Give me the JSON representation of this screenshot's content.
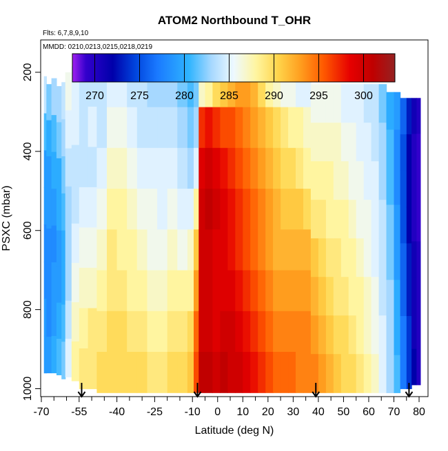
{
  "chart_data": {
    "type": "heatmap",
    "title": "ATOM2 Northbound T_OHR",
    "flights_note": "Flts: 6,7,8,9,10",
    "dates_note": "MMDD: 0210,0213,0215,0218,0219",
    "xlabel": "Latitude (deg N)",
    "ylabel": "PSXC (mbar)",
    "xlim": [
      -70,
      83
    ],
    "ylim": [
      1020,
      120
    ],
    "y_reversed": true,
    "x_ticks": [
      -70,
      -55,
      -40,
      -25,
      -10,
      0,
      10,
      20,
      30,
      40,
      50,
      60,
      70,
      80
    ],
    "x_tick_labels": [
      "-70",
      "-55",
      "-40",
      "-25",
      "-10",
      "0",
      "10",
      "20",
      "30",
      "40",
      "50",
      "60",
      "70",
      "80"
    ],
    "x_minor_ticks": [
      -65,
      -60,
      -50,
      -45,
      -35,
      -30,
      -20,
      -15,
      -5,
      5,
      15,
      25,
      35,
      45,
      55,
      65,
      75
    ],
    "y_ticks": [
      200,
      400,
      600,
      800,
      1000
    ],
    "y_tick_labels": [
      "200",
      "400",
      "600",
      "800",
      "1000"
    ],
    "colorbar": {
      "min": 267.5,
      "max": 303.5,
      "ticks": [
        270,
        275,
        280,
        285,
        290,
        295,
        300
      ],
      "tick_labels": [
        "270",
        "275",
        "280",
        "285",
        "290",
        "295",
        "300"
      ],
      "stops": [
        {
          "v": 267.5,
          "c": "#a020f0"
        },
        {
          "v": 269.0,
          "c": "#3300cc"
        },
        {
          "v": 272.0,
          "c": "#0000aa"
        },
        {
          "v": 274.5,
          "c": "#0044dd"
        },
        {
          "v": 277.0,
          "c": "#1a7aff"
        },
        {
          "v": 280.5,
          "c": "#2fb4ff"
        },
        {
          "v": 283.0,
          "c": "#a6d8ff"
        },
        {
          "v": 285.5,
          "c": "#eef9ff"
        },
        {
          "v": 288.0,
          "c": "#fff5a0"
        },
        {
          "v": 290.5,
          "c": "#ffd44a"
        },
        {
          "v": 293.0,
          "c": "#ff9d1e"
        },
        {
          "v": 295.5,
          "c": "#ff5a00"
        },
        {
          "v": 298.5,
          "c": "#e60000"
        },
        {
          "v": 301.0,
          "c": "#c00000"
        },
        {
          "v": 303.5,
          "c": "#952222"
        }
      ]
    },
    "profile_arrows_lat": [
      -54,
      -8,
      39,
      76
    ],
    "columns": [
      {
        "x": [
          -69.0,
          -68.0
        ],
        "p": [
          210,
          960
        ],
        "t": [
          284,
          281,
          279,
          279,
          278,
          278,
          279,
          279
        ]
      },
      {
        "x": [
          -68.0,
          -66.0
        ],
        "p": [
          230,
          960
        ],
        "t": [
          282,
          280,
          279,
          279,
          278,
          278,
          278,
          279
        ]
      },
      {
        "x": [
          -66.0,
          -64.0
        ],
        "p": [
          215,
          960
        ],
        "t": [
          283,
          281,
          280,
          279,
          278,
          279,
          279,
          280
        ]
      },
      {
        "x": [
          -64.0,
          -62.0
        ],
        "p": [
          235,
          965
        ],
        "t": [
          283,
          282,
          280,
          280,
          279,
          279,
          280,
          281
        ]
      },
      {
        "x": [
          -62.0,
          -60.5
        ],
        "p": [
          225,
          975
        ],
        "t": [
          284,
          283,
          282,
          281,
          280,
          280,
          281,
          282
        ]
      },
      {
        "x": [
          -60.5,
          -58.0
        ],
        "p": [
          200,
          970
        ],
        "t": [
          286,
          285,
          284,
          283,
          283,
          283,
          284,
          285
        ]
      },
      {
        "x": [
          -58.0,
          -55.0
        ],
        "p": [
          185,
          980
        ],
        "t": [
          285,
          285,
          284,
          284,
          285,
          286,
          287,
          288
        ]
      },
      {
        "x": [
          -55.0,
          -51.5
        ],
        "p": [
          185,
          1000
        ],
        "t": [
          284,
          284,
          284,
          285,
          286,
          287,
          288,
          289
        ]
      },
      {
        "x": [
          -51.5,
          -48.0
        ],
        "p": [
          185,
          1000
        ],
        "t": [
          284,
          285,
          284,
          285,
          286,
          287,
          289,
          289
        ]
      },
      {
        "x": [
          -48.0,
          -44.0
        ],
        "p": [
          185,
          1010
        ],
        "t": [
          284,
          284,
          285,
          286,
          287,
          288,
          289,
          290
        ]
      },
      {
        "x": [
          -44.0,
          -40.0
        ],
        "p": [
          185,
          1010
        ],
        "t": [
          285,
          286,
          287,
          288,
          289,
          289,
          290,
          290
        ]
      },
      {
        "x": [
          -40.0,
          -36.0
        ],
        "p": [
          185,
          1010
        ],
        "t": [
          285,
          286,
          287,
          288,
          288,
          289,
          290,
          290
        ]
      },
      {
        "x": [
          -36.0,
          -32.0
        ],
        "p": [
          185,
          1010
        ],
        "t": [
          284,
          285,
          286,
          287,
          288,
          288,
          289,
          290
        ]
      },
      {
        "x": [
          -32.0,
          -28.0
        ],
        "p": [
          185,
          1010
        ],
        "t": [
          284,
          284,
          285,
          286,
          287,
          288,
          289,
          290
        ]
      },
      {
        "x": [
          -28.0,
          -24.0
        ],
        "p": [
          185,
          1010
        ],
        "t": [
          283,
          284,
          285,
          286,
          286,
          287,
          288,
          289
        ]
      },
      {
        "x": [
          -24.0,
          -20.0
        ],
        "p": [
          185,
          1010
        ],
        "t": [
          283,
          284,
          285,
          285,
          286,
          287,
          288,
          289
        ]
      },
      {
        "x": [
          -20.0,
          -16.0
        ],
        "p": [
          185,
          1010
        ],
        "t": [
          283,
          284,
          285,
          286,
          287,
          288,
          289,
          290
        ]
      },
      {
        "x": [
          -16.0,
          -12.0
        ],
        "p": [
          185,
          1010
        ],
        "t": [
          282,
          283,
          284,
          285,
          286,
          288,
          289,
          290
        ]
      },
      {
        "x": [
          -12.0,
          -9.5
        ],
        "p": [
          185,
          1010
        ],
        "t": [
          281,
          282,
          283,
          285,
          287,
          288,
          290,
          291
        ]
      },
      {
        "x": [
          -9.5,
          -7.5
        ],
        "p": [
          185,
          1010
        ],
        "t": [
          282,
          283,
          285,
          288,
          291,
          293,
          295,
          296
        ]
      },
      {
        "x": [
          -7.5,
          -5.0
        ],
        "p": [
          185,
          1010
        ],
        "t": [
          287,
          297,
          299,
          300,
          300,
          300,
          300,
          301
        ]
      },
      {
        "x": [
          -5.0,
          -2.0
        ],
        "p": [
          185,
          1010
        ],
        "t": [
          288,
          298,
          300,
          301,
          300,
          300,
          300,
          301
        ]
      },
      {
        "x": [
          -2.0,
          1.0
        ],
        "p": [
          185,
          1010
        ],
        "t": [
          290,
          297,
          299,
          300,
          299,
          299,
          299,
          300
        ]
      },
      {
        "x": [
          1.0,
          4.0
        ],
        "p": [
          185,
          1010
        ],
        "t": [
          291,
          296,
          298,
          299,
          299,
          299,
          300,
          301
        ]
      },
      {
        "x": [
          4.0,
          7.0
        ],
        "p": [
          185,
          1010
        ],
        "t": [
          292,
          296,
          297,
          298,
          298,
          299,
          300,
          300
        ]
      },
      {
        "x": [
          7.0,
          10.0
        ],
        "p": [
          185,
          1010
        ],
        "t": [
          293,
          295,
          296,
          297,
          297,
          298,
          299,
          300
        ]
      },
      {
        "x": [
          10.0,
          13.0
        ],
        "p": [
          185,
          1010
        ],
        "t": [
          293,
          294,
          295,
          296,
          296,
          297,
          298,
          299
        ]
      },
      {
        "x": [
          13.0,
          16.0
        ],
        "p": [
          185,
          1010
        ],
        "t": [
          292,
          293,
          294,
          295,
          295,
          296,
          297,
          298
        ]
      },
      {
        "x": [
          16.0,
          19.0
        ],
        "p": [
          185,
          1010
        ],
        "t": [
          290,
          292,
          293,
          294,
          294,
          295,
          296,
          297
        ]
      },
      {
        "x": [
          19.0,
          22.0
        ],
        "p": [
          185,
          1010
        ],
        "t": [
          288,
          291,
          292,
          293,
          293,
          294,
          295,
          296
        ]
      },
      {
        "x": [
          22.0,
          25.0
        ],
        "p": [
          185,
          1010
        ],
        "t": [
          287,
          290,
          291,
          292,
          292,
          293,
          294,
          295
        ]
      },
      {
        "x": [
          25.0,
          28.0
        ],
        "p": [
          185,
          1010
        ],
        "t": [
          286,
          289,
          290,
          291,
          292,
          293,
          294,
          295
        ]
      },
      {
        "x": [
          28.0,
          31.0
        ],
        "p": [
          185,
          1010
        ],
        "t": [
          286,
          288,
          290,
          291,
          292,
          293,
          294,
          295
        ]
      },
      {
        "x": [
          31.0,
          34.0
        ],
        "p": [
          185,
          1010
        ],
        "t": [
          285,
          288,
          289,
          291,
          292,
          293,
          294,
          294
        ]
      },
      {
        "x": [
          34.0,
          37.0
        ],
        "p": [
          185,
          1010
        ],
        "t": [
          285,
          287,
          288,
          290,
          292,
          293,
          294,
          294
        ]
      },
      {
        "x": [
          37.0,
          40.0
        ],
        "p": [
          230,
          1010
        ],
        "t": [
          286,
          287,
          288,
          289,
          291,
          292,
          293,
          294
        ]
      },
      {
        "x": [
          40.0,
          43.0
        ],
        "p": [
          230,
          1010
        ],
        "t": [
          286,
          287,
          288,
          289,
          290,
          291,
          292,
          293
        ]
      },
      {
        "x": [
          43.0,
          46.0
        ],
        "p": [
          230,
          1010
        ],
        "t": [
          286,
          287,
          288,
          288,
          289,
          290,
          291,
          292
        ]
      },
      {
        "x": [
          46.0,
          49.0
        ],
        "p": [
          230,
          1010
        ],
        "t": [
          286,
          287,
          287,
          288,
          289,
          289,
          290,
          291
        ]
      },
      {
        "x": [
          49.0,
          52.0
        ],
        "p": [
          230,
          1010
        ],
        "t": [
          285,
          286,
          287,
          288,
          288,
          289,
          290,
          290
        ]
      },
      {
        "x": [
          52.0,
          55.0
        ],
        "p": [
          230,
          1010
        ],
        "t": [
          285,
          286,
          286,
          287,
          288,
          288,
          289,
          290
        ]
      },
      {
        "x": [
          55.0,
          58.0
        ],
        "p": [
          230,
          1010
        ],
        "t": [
          285,
          285,
          286,
          286,
          287,
          288,
          288,
          289
        ]
      },
      {
        "x": [
          58.0,
          61.0
        ],
        "p": [
          230,
          1010
        ],
        "t": [
          284,
          285,
          285,
          286,
          286,
          287,
          287,
          288
        ]
      },
      {
        "x": [
          61.0,
          64.0
        ],
        "p": [
          230,
          1010
        ],
        "t": [
          284,
          284,
          285,
          285,
          285,
          286,
          286,
          287
        ]
      },
      {
        "x": [
          64.0,
          67.0
        ],
        "p": [
          230,
          1010
        ],
        "t": [
          282,
          283,
          283,
          284,
          284,
          284,
          285,
          285
        ]
      },
      {
        "x": [
          67.0,
          70.0
        ],
        "p": [
          250,
          1010
        ],
        "t": [
          280,
          281,
          281,
          282,
          282,
          283,
          283,
          283
        ]
      },
      {
        "x": [
          70.0,
          72.5
        ],
        "p": [
          250,
          1010
        ],
        "t": [
          279,
          278,
          278,
          279,
          279,
          280,
          280,
          281
        ]
      },
      {
        "x": [
          72.5,
          75.0
        ],
        "p": [
          265,
          1000
        ],
        "t": [
          276,
          275,
          275,
          275,
          276,
          276,
          277,
          277
        ]
      },
      {
        "x": [
          75.0,
          77.0
        ],
        "p": [
          265,
          1000
        ],
        "t": [
          273,
          272,
          272,
          272,
          273,
          273,
          274,
          274
        ]
      },
      {
        "x": [
          77.0,
          79.0
        ],
        "p": [
          265,
          990
        ],
        "t": [
          271,
          270,
          270,
          270,
          271,
          271,
          271,
          272
        ]
      },
      {
        "x": [
          79.0,
          80.5
        ],
        "p": [
          265,
          990
        ],
        "t": [
          270,
          269,
          269,
          269,
          270,
          270,
          270,
          270
        ]
      }
    ]
  }
}
